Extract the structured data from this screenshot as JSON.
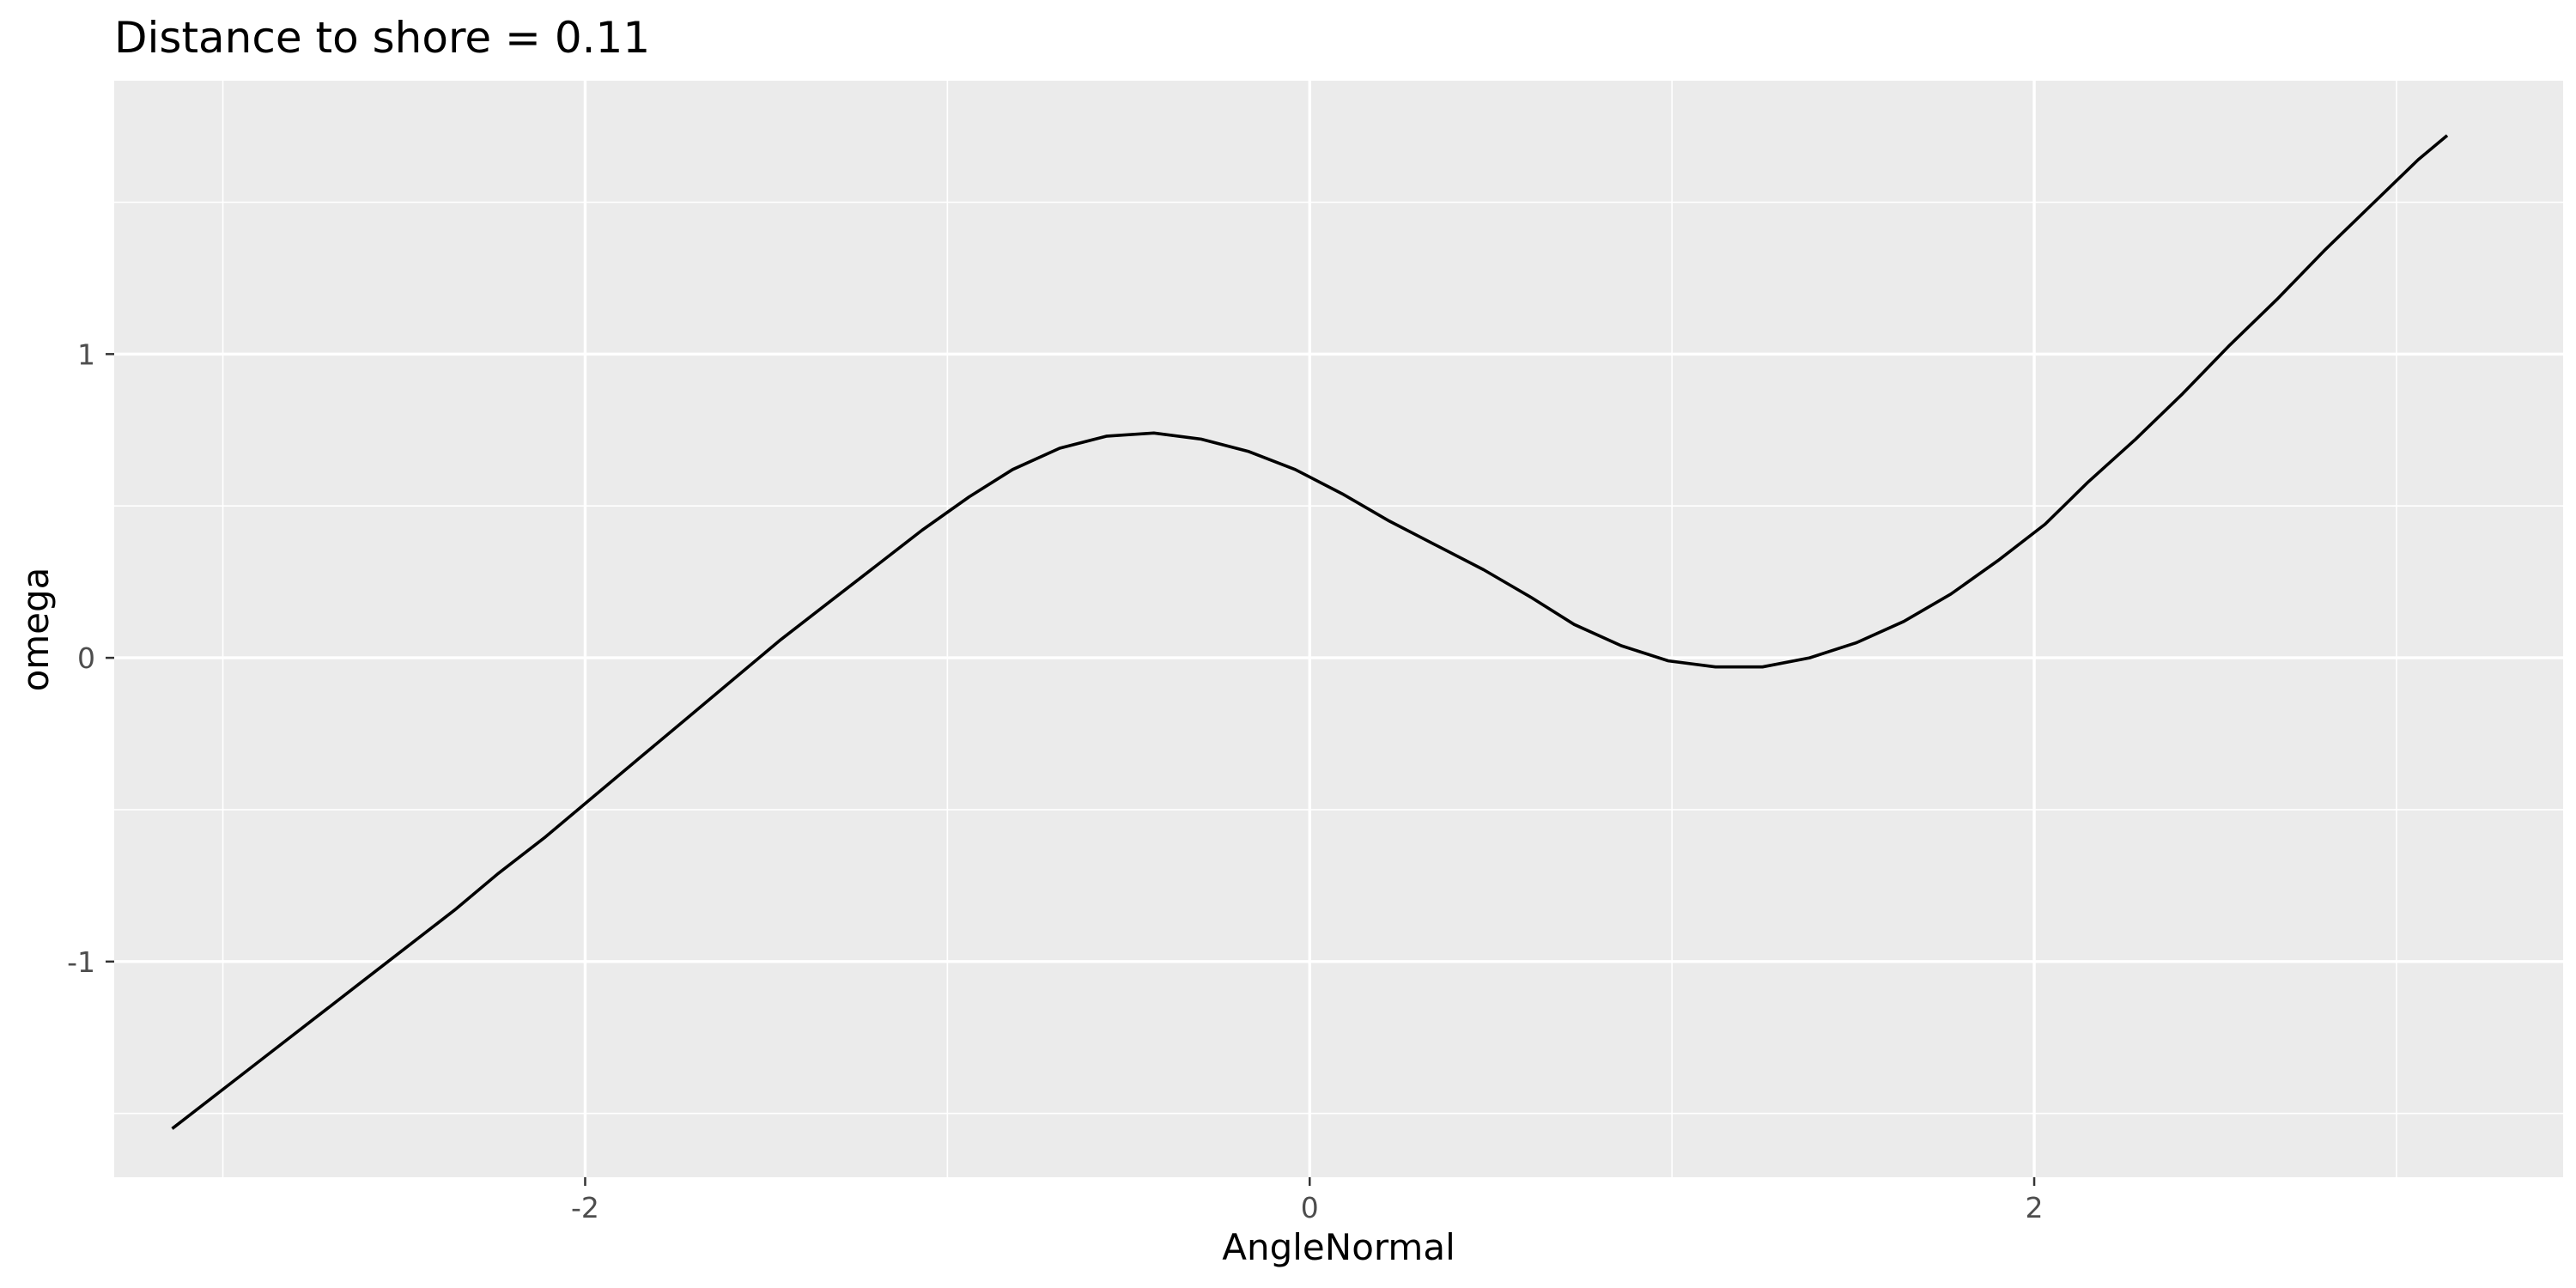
{
  "chart_data": {
    "type": "line",
    "title": "Distance to shore = 0.11",
    "xlabel": "AngleNormal",
    "ylabel": "omega",
    "xlim": [
      -3.3,
      3.46
    ],
    "ylim": [
      -1.71,
      1.9
    ],
    "x_ticks": [
      -2,
      0,
      2
    ],
    "x_tick_labels": [
      "-2",
      "0",
      "2"
    ],
    "x_minor_ticks": [
      -3,
      -1,
      1,
      3
    ],
    "y_ticks": [
      -1,
      0,
      1
    ],
    "y_tick_labels": [
      "-1",
      "0",
      "1"
    ],
    "y_minor_ticks": [
      -1.5,
      -0.5,
      0.5,
      1.5
    ],
    "grid": true,
    "legend": "none",
    "colors": {
      "panel_background": "#ebebeb",
      "grid": "#ffffff",
      "line": "#000000",
      "tick_label": "#4d4d4d",
      "tick_mark": "#333333"
    },
    "series": [
      {
        "x": [
          -3.14,
          -3.01,
          -2.88,
          -2.75,
          -2.62,
          -2.49,
          -2.36,
          -2.24,
          -2.11,
          -1.98,
          -1.85,
          -1.72,
          -1.59,
          -1.46,
          -1.33,
          -1.2,
          -1.07,
          -0.94,
          -0.82,
          -0.69,
          -0.56,
          -0.43,
          -0.3,
          -0.17,
          -0.04,
          0.09,
          0.22,
          0.35,
          0.48,
          0.61,
          0.73,
          0.86,
          0.99,
          1.12,
          1.25,
          1.38,
          1.51,
          1.64,
          1.77,
          1.9,
          2.03,
          2.15,
          2.28,
          2.41,
          2.54,
          2.67,
          2.8,
          2.93,
          3.06,
          3.14
        ],
        "values": [
          -1.55,
          -1.43,
          -1.31,
          -1.19,
          -1.07,
          -0.95,
          -0.83,
          -0.71,
          -0.59,
          -0.46,
          -0.33,
          -0.2,
          -0.07,
          0.06,
          0.18,
          0.3,
          0.42,
          0.53,
          0.62,
          0.69,
          0.73,
          0.74,
          0.72,
          0.68,
          0.62,
          0.54,
          0.45,
          0.37,
          0.29,
          0.2,
          0.11,
          0.04,
          -0.01,
          -0.03,
          -0.03,
          0,
          0.05,
          0.12,
          0.21,
          0.32,
          0.44,
          0.58,
          0.72,
          0.87,
          1.03,
          1.18,
          1.34,
          1.49,
          1.64,
          1.72
        ]
      }
    ]
  }
}
